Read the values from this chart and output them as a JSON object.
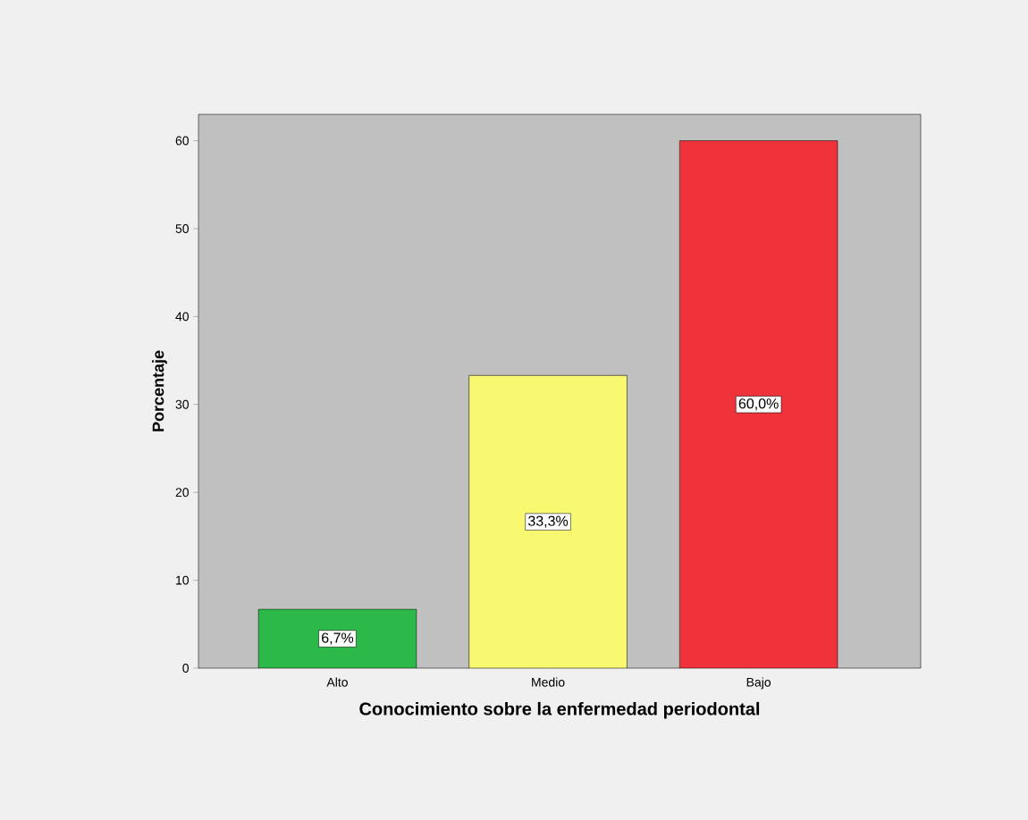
{
  "chart_data": {
    "type": "bar",
    "categories": [
      "Alto",
      "Medio",
      "Bajo"
    ],
    "values": [
      6.7,
      33.3,
      60.0
    ],
    "value_labels": [
      "6,7%",
      "33,3%",
      "60,0%"
    ],
    "colors": [
      "#2db84a",
      "#f9f871",
      "#f0323a"
    ],
    "xlabel": "Conocimiento sobre la enfermedad periodontal",
    "ylabel": "Porcentaje",
    "ylim": [
      0,
      63
    ],
    "yticks": [
      0,
      10,
      20,
      30,
      40,
      50,
      60
    ]
  }
}
